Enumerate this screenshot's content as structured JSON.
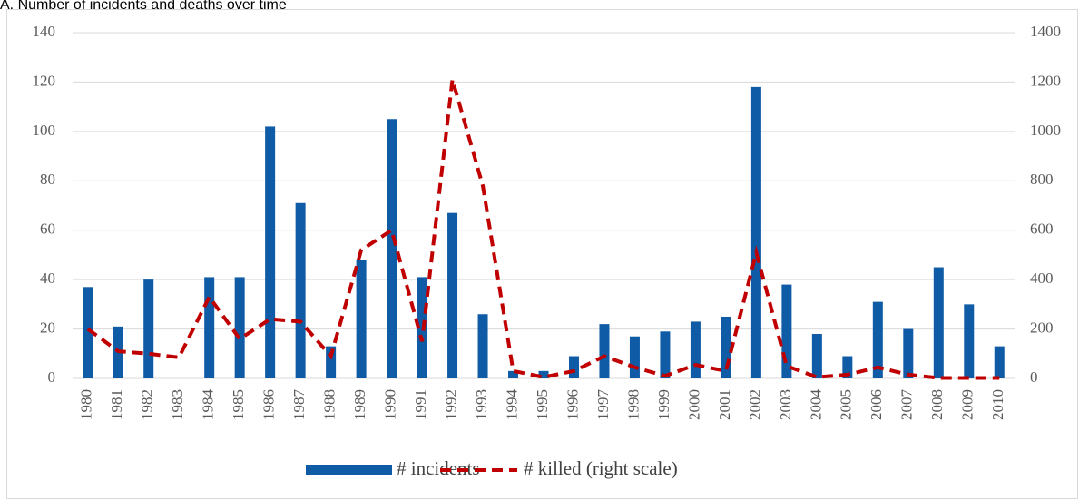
{
  "chart_data": {
    "type": "bar-line",
    "title": "A. Number of incidents and deaths over time",
    "categories": [
      "1980",
      "1981",
      "1982",
      "1983",
      "1984",
      "1985",
      "1986",
      "1987",
      "1988",
      "1989",
      "1990",
      "1991",
      "1992",
      "1993",
      "1994",
      "1995",
      "1996",
      "1997",
      "1998",
      "1999",
      "2000",
      "2001",
      "2002",
      "2003",
      "2004",
      "2005",
      "2006",
      "2007",
      "2008",
      "2009",
      "2010"
    ],
    "series": [
      {
        "name": "# incidents",
        "type": "bar",
        "color": "#0f5ba6",
        "values": [
          37,
          21,
          40,
          0,
          41,
          41,
          102,
          71,
          13,
          48,
          105,
          41,
          67,
          26,
          3,
          3,
          9,
          22,
          17,
          19,
          23,
          25,
          118,
          38,
          18,
          9,
          31,
          20,
          45,
          30,
          13
        ]
      },
      {
        "name": "# killed (right scale)",
        "type": "line",
        "axis": "y2",
        "color": "#c00000",
        "dashed": true,
        "values": [
          200,
          110,
          100,
          85,
          330,
          160,
          240,
          230,
          90,
          520,
          600,
          150,
          1210,
          780,
          30,
          5,
          30,
          90,
          45,
          10,
          55,
          30,
          510,
          50,
          5,
          15,
          45,
          15,
          2,
          2,
          2
        ]
      }
    ],
    "ylim": [
      0,
      140
    ],
    "yticks": [
      0,
      20,
      40,
      60,
      80,
      100,
      120,
      140
    ],
    "y2lim": [
      0,
      1400
    ],
    "y2ticks": [
      0,
      200,
      400,
      600,
      800,
      1000,
      1200,
      1400
    ],
    "grid": true,
    "legend": "bottom"
  }
}
